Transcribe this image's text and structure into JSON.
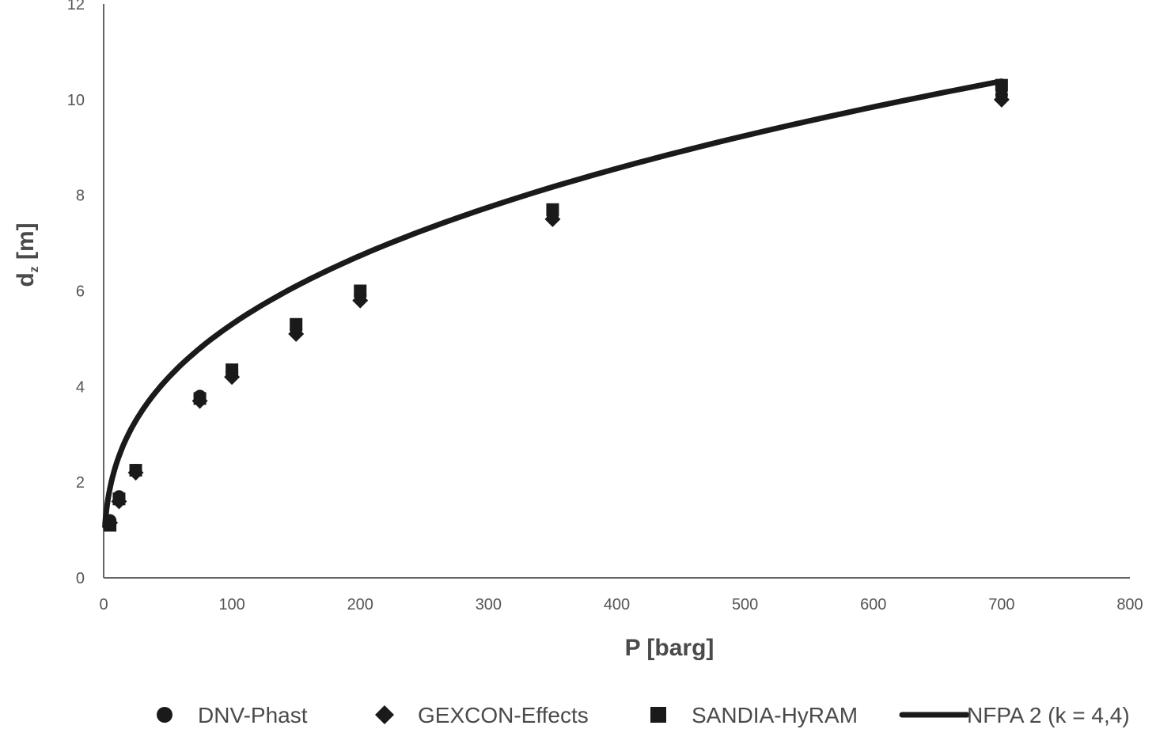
{
  "chart_data": {
    "type": "scatter",
    "xlabel": "P [barg]",
    "ylabel": "d",
    "ylabel_sub": "z",
    "ylabel_unit": " [m]",
    "xlim": [
      0,
      800
    ],
    "ylim": [
      0,
      12
    ],
    "x_ticks": [
      "0",
      "100",
      "200",
      "300",
      "400",
      "500",
      "600",
      "700",
      "800"
    ],
    "y_ticks": [
      "0",
      "2",
      "4",
      "6",
      "8",
      "10",
      "12"
    ],
    "grid": false,
    "legend_position": "bottom",
    "series": [
      {
        "name": "DNV-Phast",
        "marker": "circle",
        "color": "#1a1a1a",
        "points": [
          [
            5,
            1.2
          ],
          [
            12,
            1.7
          ],
          [
            25,
            2.25
          ],
          [
            75,
            3.8
          ],
          [
            100,
            4.3
          ],
          [
            150,
            5.2
          ],
          [
            200,
            5.9
          ],
          [
            350,
            7.6
          ],
          [
            700,
            10.1
          ]
        ]
      },
      {
        "name": "GEXCON-Effects",
        "marker": "diamond",
        "color": "#1a1a1a",
        "points": [
          [
            5,
            1.15
          ],
          [
            12,
            1.6
          ],
          [
            25,
            2.2
          ],
          [
            75,
            3.7
          ],
          [
            100,
            4.2
          ],
          [
            150,
            5.1
          ],
          [
            200,
            5.8
          ],
          [
            350,
            7.5
          ],
          [
            700,
            10.0
          ]
        ]
      },
      {
        "name": "SANDIA-HyRAM",
        "marker": "square",
        "color": "#1a1a1a",
        "points": [
          [
            5,
            1.1
          ],
          [
            12,
            1.65
          ],
          [
            25,
            2.25
          ],
          [
            75,
            3.75
          ],
          [
            100,
            4.35
          ],
          [
            150,
            5.3
          ],
          [
            200,
            6.0
          ],
          [
            350,
            7.7
          ],
          [
            700,
            10.3
          ]
        ]
      },
      {
        "name": "NFPA 2 (k = 4,4)",
        "marker": "line",
        "color": "#1a1a1a",
        "k": 4.4,
        "x_range": [
          0,
          700
        ]
      }
    ]
  }
}
